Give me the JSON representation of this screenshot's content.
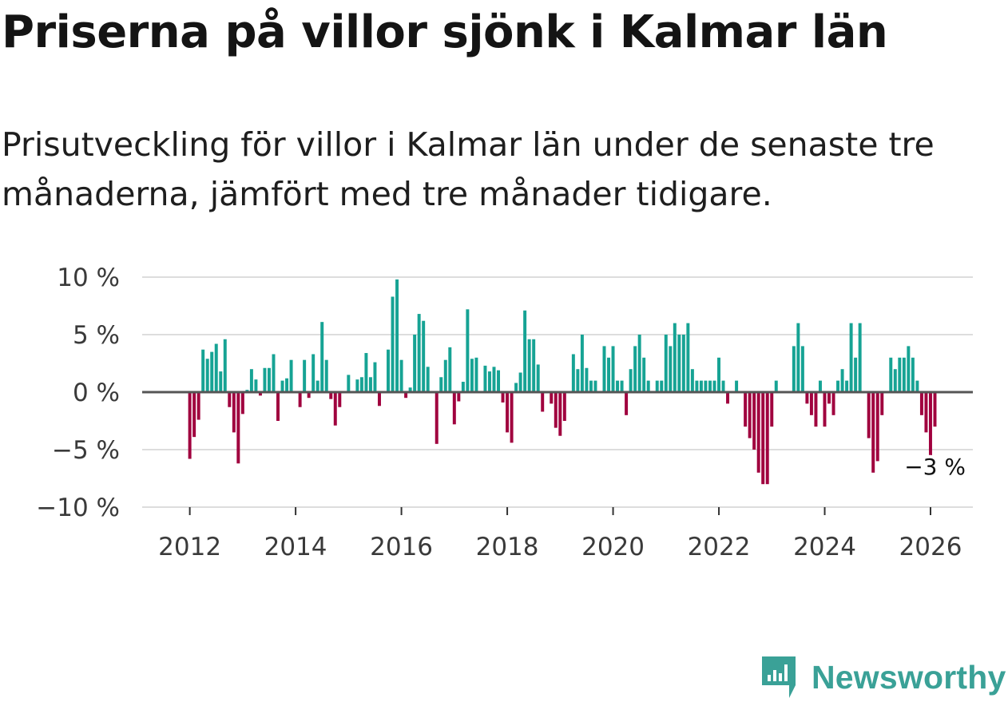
{
  "title": "Priserna på villor sjönk i Kalmar län",
  "subtitle": "Prisutveckling för villor i Kalmar län under de senaste tre månaderna, jämfört med tre månader tidigare.",
  "brand": {
    "name": "Newsworthy",
    "color": "#3aa197",
    "icon": "newsworthy-logo-icon"
  },
  "colors": {
    "positive": "#16a394",
    "negative": "#a0003e",
    "grid": "#dddddd",
    "zero": "#555555"
  },
  "chart_data": {
    "type": "bar",
    "title": "Priserna på villor sjönk i Kalmar län",
    "xlabel": "",
    "ylabel": "",
    "x_start": 2012.0,
    "x_step": 0.08333,
    "xlim": [
      2011.1,
      2026.8
    ],
    "ylim": [
      -10,
      10
    ],
    "y_ticks": [
      10,
      5,
      0,
      -5,
      -10
    ],
    "y_tick_labels": [
      "10 %",
      "5 %",
      "0 %",
      "−5 %",
      "−10 %"
    ],
    "x_ticks": [
      2012,
      2014,
      2016,
      2018,
      2020,
      2022,
      2024,
      2026
    ],
    "x_tick_labels": [
      "2012",
      "2014",
      "2016",
      "2018",
      "2020",
      "2022",
      "2024",
      "2026"
    ],
    "grid": true,
    "annotation": {
      "text": "−3 %",
      "x": 2026.0,
      "y": -3
    },
    "values": [
      -5.8,
      -3.9,
      -2.4,
      3.7,
      2.9,
      3.5,
      4.2,
      1.8,
      4.6,
      -1.3,
      -3.5,
      -6.2,
      -1.9,
      0.2,
      2.0,
      1.1,
      -0.3,
      2.1,
      2.1,
      3.3,
      -2.5,
      1.0,
      1.2,
      2.8,
      0.0,
      -1.3,
      2.8,
      -0.5,
      3.3,
      1.0,
      6.1,
      2.8,
      -0.6,
      -2.9,
      -1.3,
      0.0,
      1.5,
      0.0,
      1.1,
      1.3,
      3.4,
      1.3,
      2.6,
      -1.2,
      0.0,
      3.7,
      8.3,
      9.8,
      2.8,
      -0.5,
      0.4,
      5.0,
      6.8,
      6.2,
      2.2,
      0.1,
      -4.5,
      1.3,
      2.8,
      3.9,
      -2.8,
      -0.8,
      0.9,
      7.2,
      2.9,
      3.0,
      0.0,
      2.3,
      1.8,
      2.2,
      1.9,
      -0.9,
      -3.5,
      -4.4,
      0.8,
      1.7,
      7.1,
      4.6,
      4.6,
      2.4,
      -1.7,
      0.0,
      -1.0,
      -3.1,
      -3.8,
      -2.5,
      0.1,
      3.3,
      2.0,
      5.0,
      2.1,
      1.0,
      1.0,
      0.0,
      4.0,
      3.0,
      4.0,
      1.0,
      1.0,
      -2.0,
      2.0,
      4.0,
      5.0,
      3.0,
      1.0,
      0.0,
      1.0,
      1.0,
      5.0,
      4.0,
      6.0,
      5.0,
      5.0,
      6.0,
      2.0,
      1.0,
      1.0,
      1.0,
      1.0,
      1.0,
      3.0,
      1.0,
      -1.0,
      0.0,
      1.0,
      0.0,
      -3.0,
      -4.0,
      -5.0,
      -7.0,
      -8.0,
      -8.0,
      -3.0,
      1.0,
      0.0,
      0.0,
      0.0,
      4.0,
      6.0,
      4.0,
      -1.0,
      -2.0,
      -3.0,
      1.0,
      -3.0,
      -1.0,
      -2.0,
      1.0,
      2.0,
      1.0,
      6.0,
      3.0,
      6.0,
      0.0,
      -4.0,
      -7.0,
      -6.0,
      -2.0,
      0.0,
      3.0,
      2.0,
      3.0,
      3.0,
      4.0,
      3.0,
      1.0,
      -2.0,
      -3.5,
      -7.0,
      -3.0
    ]
  }
}
